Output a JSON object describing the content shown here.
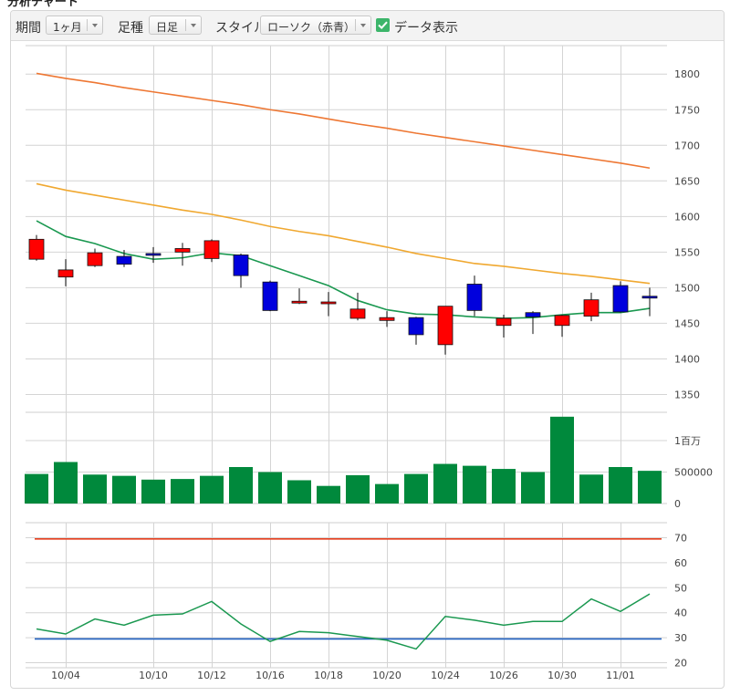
{
  "page_heading": "分析チャート",
  "toolbar": {
    "period_label": "期間",
    "period_value": "1ヶ月",
    "candle_label": "足種",
    "candle_value": "日足",
    "style_label": "スタイル",
    "style_value": "ローソク（赤青）",
    "data_display_label": "データ表示",
    "data_display_checked": true
  },
  "colors": {
    "up_candle": "#ff0000",
    "down_candle": "#0000dd",
    "volume_bar": "#00893c",
    "ma_short": "#1a9850",
    "ma_mid": "#f0a830",
    "ma_long": "#ee7733",
    "rsi_line": "#1a9850",
    "rsi_upper": "#e53e1e",
    "rsi_lower": "#1f5fbf"
  },
  "chart_data": {
    "type": "candlestick",
    "x_tick_labels": [
      {
        "label": "10/04",
        "index": 1
      },
      {
        "label": "10/10",
        "index": 4
      },
      {
        "label": "10/12",
        "index": 6
      },
      {
        "label": "10/16",
        "index": 8
      },
      {
        "label": "10/18",
        "index": 10
      },
      {
        "label": "10/20",
        "index": 12
      },
      {
        "label": "10/24",
        "index": 14
      },
      {
        "label": "10/26",
        "index": 16
      },
      {
        "label": "10/30",
        "index": 18
      },
      {
        "label": "11/01",
        "index": 20
      }
    ],
    "price": {
      "ylim": [
        1325,
        1840
      ],
      "ticks": [
        1350,
        1400,
        1450,
        1500,
        1550,
        1600,
        1650,
        1700,
        1750,
        1800
      ],
      "candles": [
        {
          "open": 1540,
          "high": 1574,
          "low": 1538,
          "close": 1568
        },
        {
          "open": 1515,
          "high": 1540,
          "low": 1502,
          "close": 1525
        },
        {
          "open": 1531,
          "high": 1555,
          "low": 1529,
          "close": 1549
        },
        {
          "open": 1544,
          "high": 1553,
          "low": 1529,
          "close": 1533
        },
        {
          "open": 1548,
          "high": 1557,
          "low": 1535,
          "close": 1547
        },
        {
          "open": 1550,
          "high": 1563,
          "low": 1531,
          "close": 1555
        },
        {
          "open": 1541,
          "high": 1568,
          "low": 1536,
          "close": 1566
        },
        {
          "open": 1546,
          "high": 1548,
          "low": 1500,
          "close": 1517
        },
        {
          "open": 1508,
          "high": 1510,
          "low": 1467,
          "close": 1468
        },
        {
          "open": 1479,
          "high": 1499,
          "low": 1477,
          "close": 1481
        },
        {
          "open": 1480,
          "high": 1494,
          "low": 1460,
          "close": 1480
        },
        {
          "open": 1457,
          "high": 1493,
          "low": 1454,
          "close": 1470
        },
        {
          "open": 1454,
          "high": 1467,
          "low": 1445,
          "close": 1458
        },
        {
          "open": 1458,
          "high": 1459,
          "low": 1420,
          "close": 1434
        },
        {
          "open": 1420,
          "high": 1474,
          "low": 1406,
          "close": 1474
        },
        {
          "open": 1505,
          "high": 1517,
          "low": 1460,
          "close": 1468
        },
        {
          "open": 1447,
          "high": 1462,
          "low": 1430,
          "close": 1457
        },
        {
          "open": 1465,
          "high": 1467,
          "low": 1435,
          "close": 1459
        },
        {
          "open": 1447,
          "high": 1462,
          "low": 1431,
          "close": 1461
        },
        {
          "open": 1460,
          "high": 1493,
          "low": 1453,
          "close": 1483
        },
        {
          "open": 1503,
          "high": 1509,
          "low": 1465,
          "close": 1466
        },
        {
          "open": 1488,
          "high": 1500,
          "low": 1460,
          "close": 1486
        }
      ],
      "ma_short": [
        1594,
        1572,
        1562,
        1548,
        1540,
        1542,
        1549,
        1545,
        1531,
        1517,
        1503,
        1482,
        1469,
        1463,
        1462,
        1459,
        1457,
        1458,
        1462,
        1465,
        1465,
        1471
      ],
      "ma_mid": [
        1646,
        1637,
        1630,
        1623,
        1616,
        1609,
        1603,
        1595,
        1586,
        1579,
        1573,
        1565,
        1557,
        1548,
        1541,
        1534,
        1530,
        1525,
        1520,
        1516,
        1511,
        1506
      ],
      "ma_long": [
        1801,
        1794,
        1788,
        1781,
        1775,
        1769,
        1763,
        1757,
        1750,
        1744,
        1737,
        1730,
        1724,
        1717,
        1711,
        1705,
        1699,
        1693,
        1687,
        1681,
        1675,
        1668
      ]
    },
    "volume": {
      "ticks": [
        {
          "label": "0",
          "value": 0
        },
        {
          "label": "500000",
          "value": 500000
        },
        {
          "label": "1百万",
          "value": 1000000
        }
      ],
      "values": [
        470000,
        660000,
        460000,
        440000,
        380000,
        390000,
        440000,
        580000,
        500000,
        370000,
        280000,
        450000,
        310000,
        470000,
        630000,
        600000,
        550000,
        500000,
        1380000,
        460000,
        580000,
        520000
      ]
    },
    "rsi": {
      "ylim": [
        18,
        76
      ],
      "ticks": [
        20,
        30,
        40,
        50,
        60,
        70
      ],
      "values": [
        33.5,
        31.5,
        37.5,
        35,
        39,
        39.5,
        44.5,
        35.5,
        28.5,
        32.5,
        32,
        30.5,
        29,
        25.5,
        38.5,
        37,
        35,
        36.5,
        36.5,
        45.5,
        40.5,
        47.5
      ],
      "upper_line": 69.5,
      "lower_line": 29.5
    }
  }
}
